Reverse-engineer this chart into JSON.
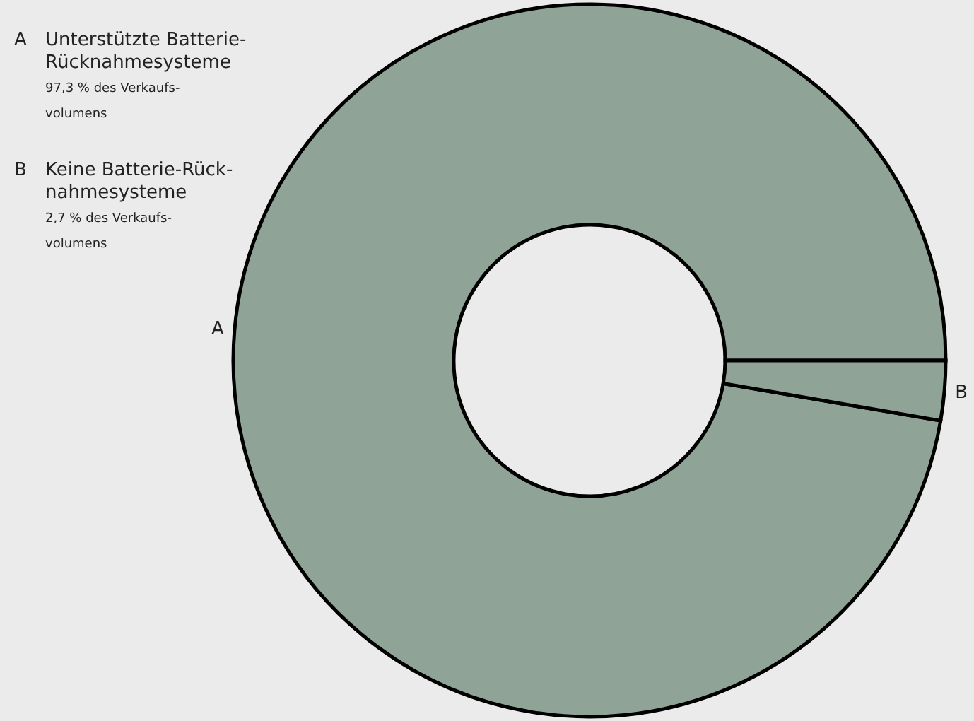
{
  "chart_data": {
    "type": "donut",
    "categories": [
      "A",
      "B"
    ],
    "values": [
      97.3,
      2.7
    ],
    "colors": [
      "#8fa396",
      "#8fa396"
    ],
    "annotations": [
      "Unterstützte Batterie-\nRücknahmesysteme",
      "97,3 % des Verkaufs-\nvolumens",
      "Keine Batterie-Rück-\nnahmesysteme",
      "2,7 % des Verkaufs-\nvolumens"
    ]
  }
}
